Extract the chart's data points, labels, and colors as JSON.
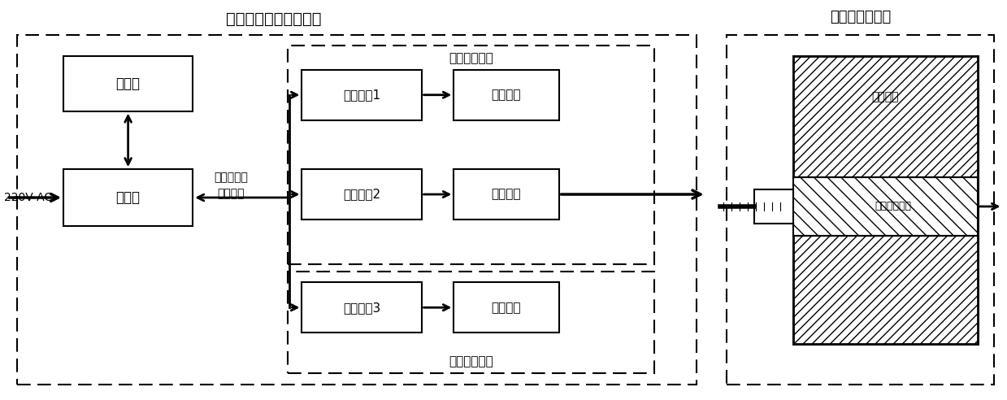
{
  "title_main": "模拟呼吸运动测控系统",
  "title_phantom": "成人胸腹部模体",
  "label_upper": "上位机",
  "label_control": "控制箱",
  "label_drive1": "电机驱动1",
  "label_drive2": "电机驱动2",
  "label_drive3": "电机驱动3",
  "label_motor1": "直流电机",
  "label_motor2": "直流电机",
  "label_motor3": "直流电机",
  "label_220v": "220V AC",
  "label_sync": "同步、异步\n控制波形",
  "label_rod": "肺部运动插杆",
  "label_tissue": "等效组织",
  "label_stick_platform": "插杆运动平台",
  "label_chest_platform": "胸壁运动平台",
  "bg_color": "#ffffff"
}
